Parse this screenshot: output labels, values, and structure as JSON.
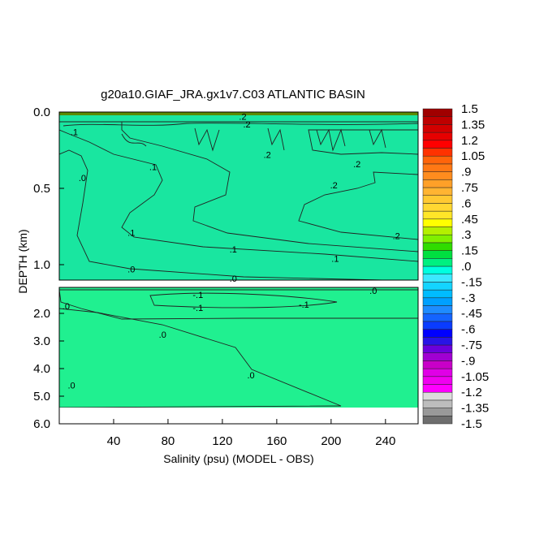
{
  "chart_data": {
    "type": "contour",
    "title": "g20a10.GIAF_JRA.gx1v7.C03 ATLANTIC BASIN",
    "xlabel": "Salinity (psu) (MODEL - OBS)",
    "ylabel": "DEPTH (km)",
    "xlim": [
      0,
      264
    ],
    "x_ticks": [
      {
        "value": 40,
        "label": "40"
      },
      {
        "value": 80,
        "label": "80"
      },
      {
        "value": 120,
        "label": "120"
      },
      {
        "value": 160,
        "label": "160"
      },
      {
        "value": 200,
        "label": "200"
      },
      {
        "value": 240,
        "label": "240"
      }
    ],
    "upper_panel": {
      "ylim": [
        0.0,
        1.1
      ],
      "y_ticks": [
        {
          "value": 0.0,
          "label": "0.0"
        },
        {
          "value": 0.5,
          "label": "0.5"
        },
        {
          "value": 1.0,
          "label": "1.0"
        }
      ]
    },
    "lower_panel": {
      "ylim": [
        1.06,
        6.0
      ],
      "data_bottom": 5.4,
      "y_ticks": [
        {
          "value": 2.0,
          "label": "2.0"
        },
        {
          "value": 3.0,
          "label": "3.0"
        },
        {
          "value": 4.0,
          "label": "4.0"
        },
        {
          "value": 5.0,
          "label": "5.0"
        },
        {
          "value": 6.0,
          "label": "6.0"
        }
      ]
    },
    "contour_labels": [
      {
        "text": ".1",
        "x": 11,
        "depth": 0.13,
        "panel": "upper"
      },
      {
        "text": ".2",
        "x": 135,
        "depth": 0.03,
        "panel": "upper"
      },
      {
        "text": ".2",
        "x": 138,
        "depth": 0.08,
        "panel": "upper"
      },
      {
        "text": ".2",
        "x": 153,
        "depth": 0.28,
        "panel": "upper"
      },
      {
        "text": ".2",
        "x": 219,
        "depth": 0.34,
        "panel": "upper"
      },
      {
        "text": ".2",
        "x": 202,
        "depth": 0.48,
        "panel": "upper"
      },
      {
        "text": ".2",
        "x": 248,
        "depth": 0.81,
        "panel": "upper"
      },
      {
        "text": ".1",
        "x": 69,
        "depth": 0.36,
        "panel": "upper"
      },
      {
        "text": ".1",
        "x": 53,
        "depth": 0.79,
        "panel": "upper"
      },
      {
        "text": ".1",
        "x": 128,
        "depth": 0.9,
        "panel": "upper"
      },
      {
        "text": ".1",
        "x": 203,
        "depth": 0.96,
        "panel": "upper"
      },
      {
        "text": ".0",
        "x": 17,
        "depth": 0.43,
        "panel": "upper"
      },
      {
        "text": ".0",
        "x": 53,
        "depth": 1.03,
        "panel": "upper"
      },
      {
        "text": ".0",
        "x": 128,
        "depth": 1.09,
        "panel": "upper"
      },
      {
        "text": "-.1",
        "x": 102,
        "depth": 1.32,
        "panel": "lower"
      },
      {
        "text": "-.1",
        "x": 102,
        "depth": 1.79,
        "panel": "lower"
      },
      {
        "text": "-.1",
        "x": 180,
        "depth": 1.68,
        "panel": "lower"
      },
      {
        "text": ".0",
        "x": 231,
        "depth": 1.18,
        "panel": "lower"
      },
      {
        "text": ".0",
        "x": 5,
        "depth": 1.74,
        "panel": "lower"
      },
      {
        "text": ".0",
        "x": 76,
        "depth": 2.76,
        "panel": "lower"
      },
      {
        "text": ".0",
        "x": 141,
        "depth": 4.24,
        "panel": "lower"
      },
      {
        "text": ".0",
        "x": 9,
        "depth": 4.6,
        "panel": "lower"
      }
    ],
    "colorbar": {
      "min": -1.5,
      "max": 1.5,
      "step": 0.075,
      "labels": [
        "1.5",
        "1.35",
        "1.2",
        "1.05",
        ".9",
        ".75",
        ".6",
        ".45",
        ".3",
        ".15",
        ".0",
        "-.15",
        "-.3",
        "-.45",
        "-.6",
        "-.75",
        "-.9",
        "-1.05",
        "-1.2",
        "-1.35",
        "-1.5"
      ],
      "colors_low_to_high": [
        "#6e6e6e",
        "#999999",
        "#bdbdbd",
        "#dcdcdc",
        "#ff00ff",
        "#f000f0",
        "#e000e6",
        "#c800c8",
        "#a000d2",
        "#6a00dc",
        "#2814e6",
        "#0000ff",
        "#0a3cff",
        "#1464ff",
        "#1e8cff",
        "#00a0ff",
        "#00bcff",
        "#14d4ff",
        "#3ce8ff",
        "#00ffe0",
        "#00f080",
        "#00e040",
        "#30dc00",
        "#80f000",
        "#b4f000",
        "#ffff00",
        "#ffe628",
        "#ffd732",
        "#ffc832",
        "#ffb432",
        "#ffa028",
        "#ff8c1e",
        "#ff7814",
        "#ff640a",
        "#ff3200",
        "#ff0000",
        "#e60000",
        "#d20000",
        "#be0000",
        "#a00000"
      ]
    }
  }
}
